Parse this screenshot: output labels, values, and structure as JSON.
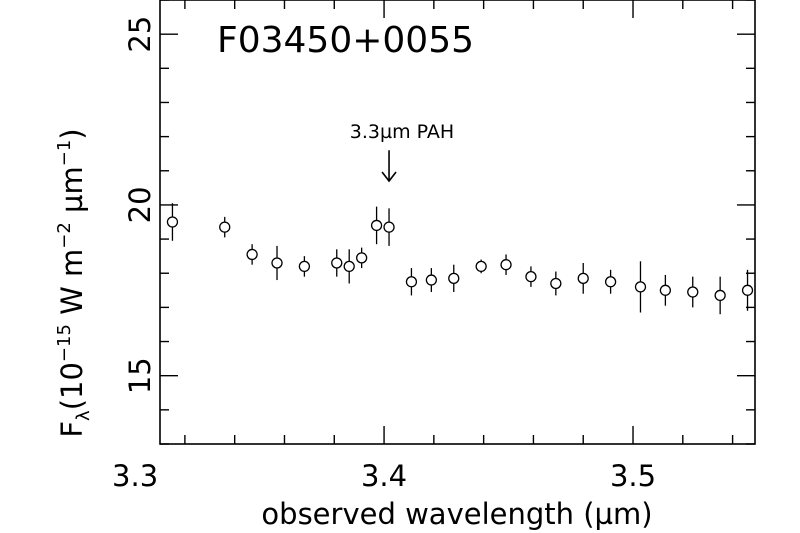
{
  "chart_data": {
    "type": "scatter",
    "title": "F03450+0055",
    "xlabel": "observed wavelength (µm)",
    "ylabel": "F",
    "ylabel_sub": "λ",
    "ylabel_units": {
      "open": "(10",
      "exp1": "−15",
      "mid1": " W m",
      "exp2": "−2",
      "mid2": " µm",
      "exp3": "−1",
      "close": ")"
    },
    "xlim": [
      3.31,
      3.549
    ],
    "ylim": [
      13,
      26
    ],
    "x_ticks": [
      "3.3",
      "3.4",
      "3.5"
    ],
    "y_ticks": [
      "15",
      "20",
      "25"
    ],
    "x_tick_values": [
      3.3,
      3.4,
      3.5
    ],
    "y_tick_values": [
      15,
      20,
      25
    ],
    "x_minor_step": 0.02,
    "y_minor_step": 1,
    "annotation": {
      "text": "3.3µm PAH",
      "x": 3.402,
      "arrow_from": 21.6,
      "arrow_to": 20.7
    },
    "marker": "open-circle",
    "points": [
      {
        "x": 3.315,
        "y": 19.5,
        "err": 0.55
      },
      {
        "x": 3.336,
        "y": 19.35,
        "err": 0.3
      },
      {
        "x": 3.347,
        "y": 18.55,
        "err": 0.3
      },
      {
        "x": 3.357,
        "y": 18.3,
        "err": 0.5
      },
      {
        "x": 3.368,
        "y": 18.2,
        "err": 0.3
      },
      {
        "x": 3.381,
        "y": 18.3,
        "err": 0.4
      },
      {
        "x": 3.386,
        "y": 18.2,
        "err": 0.5
      },
      {
        "x": 3.391,
        "y": 18.45,
        "err": 0.3
      },
      {
        "x": 3.397,
        "y": 19.4,
        "err": 0.55
      },
      {
        "x": 3.402,
        "y": 19.35,
        "err": 0.55
      },
      {
        "x": 3.411,
        "y": 17.75,
        "err": 0.4
      },
      {
        "x": 3.419,
        "y": 17.8,
        "err": 0.35
      },
      {
        "x": 3.428,
        "y": 17.85,
        "err": 0.4
      },
      {
        "x": 3.439,
        "y": 18.2,
        "err": 0.2
      },
      {
        "x": 3.449,
        "y": 18.25,
        "err": 0.3
      },
      {
        "x": 3.459,
        "y": 17.9,
        "err": 0.3
      },
      {
        "x": 3.469,
        "y": 17.7,
        "err": 0.35
      },
      {
        "x": 3.48,
        "y": 17.85,
        "err": 0.45
      },
      {
        "x": 3.491,
        "y": 17.75,
        "err": 0.35
      },
      {
        "x": 3.503,
        "y": 17.6,
        "err": 0.75
      },
      {
        "x": 3.513,
        "y": 17.5,
        "err": 0.45
      },
      {
        "x": 3.524,
        "y": 17.45,
        "err": 0.45
      },
      {
        "x": 3.535,
        "y": 17.35,
        "err": 0.55
      },
      {
        "x": 3.546,
        "y": 17.5,
        "err": 0.6
      }
    ]
  }
}
